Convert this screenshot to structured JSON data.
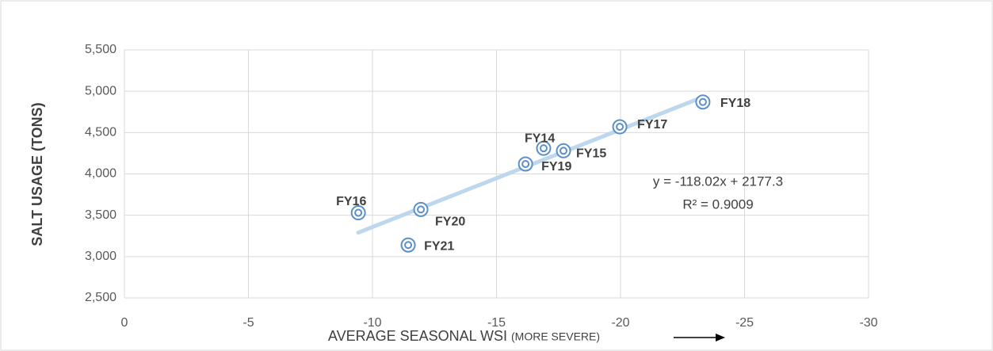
{
  "chart_data": {
    "type": "scatter",
    "x_label": "AVERAGE SEASONAL WSI",
    "x_label_note": "(MORE SEVERE)",
    "y_label": "SALT USAGE (TONS)",
    "x": [
      -16.9,
      -17.7,
      -9.43,
      -19.97,
      -23.32,
      -16.17,
      -11.95,
      -11.44
    ],
    "series": [
      {
        "name": "Salt usage",
        "color": "#5b8fc9",
        "values": [
          4310,
          4280,
          3530,
          4570,
          4870,
          4120,
          3570,
          3140
        ],
        "point_labels": [
          "FY14",
          "FY15",
          "FY16",
          "FY17",
          "FY18",
          "FY19",
          "FY20",
          "FY21"
        ]
      }
    ],
    "trendline": {
      "slope": -118.02,
      "intercept": 2177.3,
      "color": "#bdd7ee",
      "equation": "y = -118.02x + 2177.3",
      "r2": "R² = 0.9009"
    },
    "xlim": [
      0,
      -30
    ],
    "xticks": [
      0,
      -5,
      -10,
      -15,
      -20,
      -25,
      -30
    ],
    "ylim": [
      2500,
      5500
    ],
    "yticks": [
      {
        "value": 2500,
        "label": "2,500"
      },
      {
        "value": 3000,
        "label": "3,000"
      },
      {
        "value": 3500,
        "label": "3,500"
      },
      {
        "value": 4000,
        "label": "4,000"
      },
      {
        "value": 4500,
        "label": "4,500"
      },
      {
        "value": 5000,
        "label": "5,000"
      },
      {
        "value": 5500,
        "label": "5,500"
      }
    ],
    "grid": true
  }
}
